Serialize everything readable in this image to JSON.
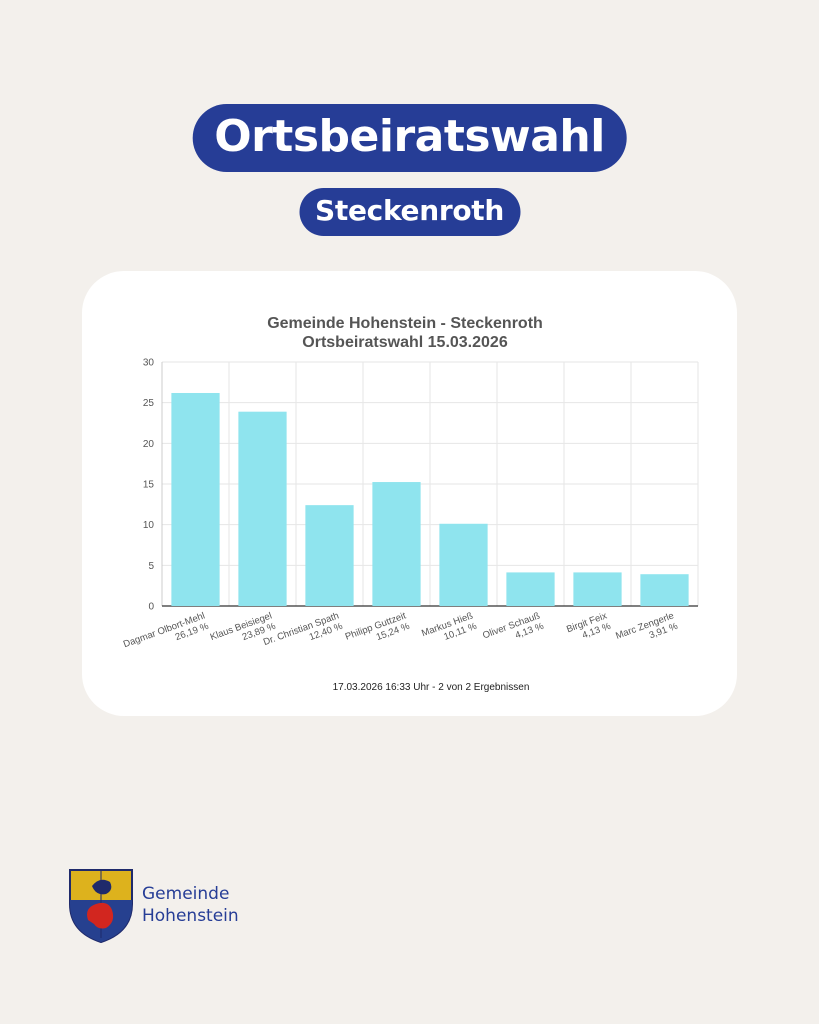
{
  "header": {
    "title": "Ortsbeiratswahl",
    "subtitle": "Steckenroth"
  },
  "colors": {
    "background": "#f3f0ec",
    "pill": "#263d96",
    "bar": "#8fe4ee",
    "grid": "#e6e6e6",
    "text": "#555555"
  },
  "chart_data": {
    "type": "bar",
    "title": "Gemeinde Hohenstein - Steckenroth",
    "subtitle": "Ortsbeiratswahl 15.03.2026",
    "categories": [
      "Dagmar Olbort-Mehl",
      "Klaus Beisiegel",
      "Dr. Christian Spath",
      "Philipp Guttzeit",
      "Markus Hieß",
      "Oliver Schauß",
      "Birgit Feix",
      "Marc Zengerle"
    ],
    "value_labels": [
      "26,19 %",
      "23,89 %",
      "12,40 %",
      "15,24 %",
      "10,11 %",
      "4,13 %",
      "4,13 %",
      "3,91 %"
    ],
    "values": [
      26.19,
      23.89,
      12.4,
      15.24,
      10.11,
      4.13,
      4.13,
      3.91
    ],
    "yticks": [
      "0",
      "5",
      "10",
      "15",
      "20",
      "25",
      "30"
    ],
    "ylim": [
      0,
      30
    ],
    "grid": true,
    "footer": "17.03.2026 16:33 Uhr - 2 von 2 Ergebnissen"
  },
  "footer_logo": {
    "line1": "Gemeinde",
    "line2": "Hohenstein",
    "icon": "coat-of-arms-icon"
  }
}
